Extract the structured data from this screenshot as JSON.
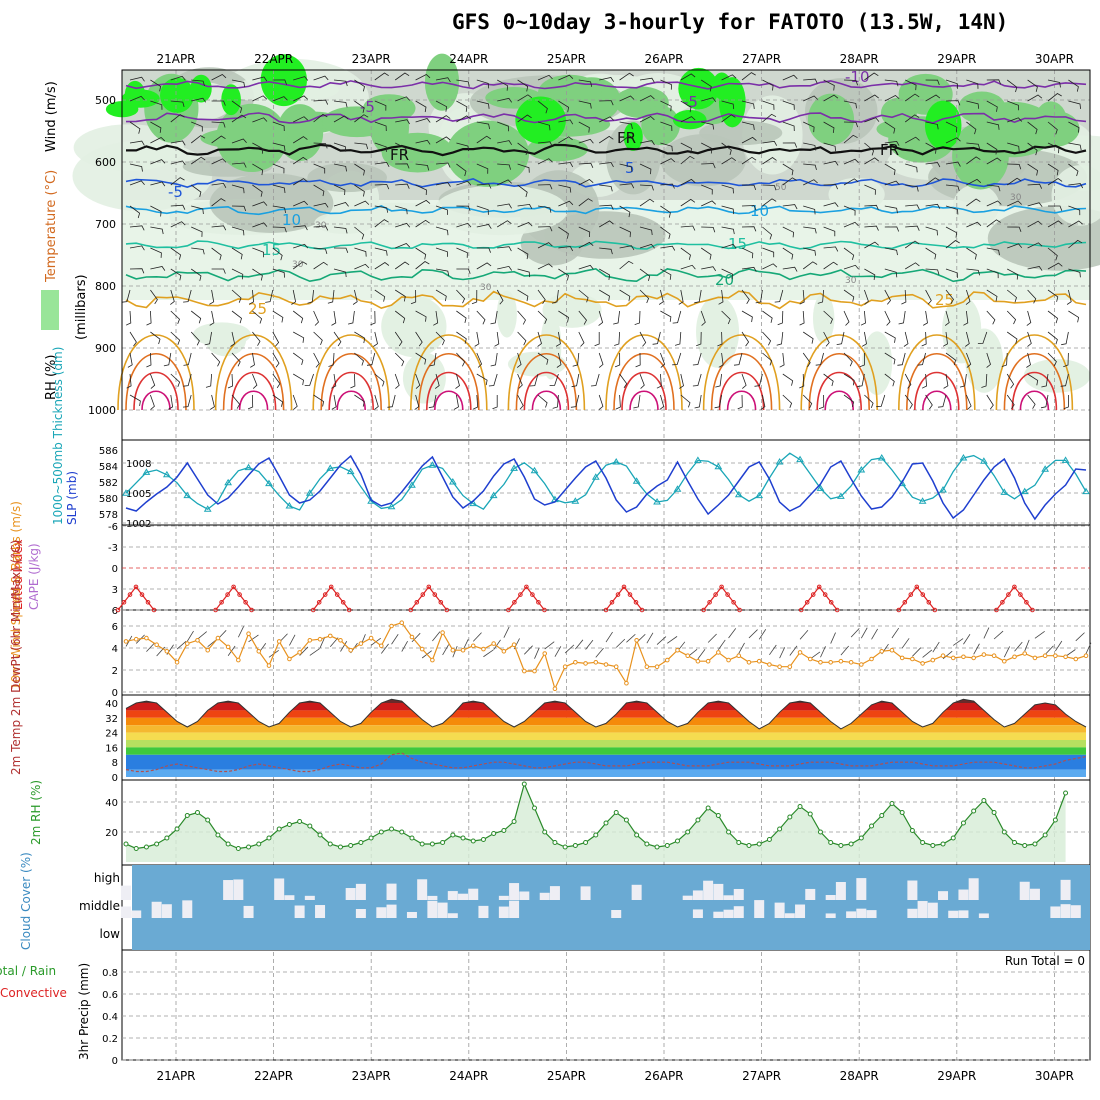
{
  "title": "GFS 0~10day 3-hourly for FATOTO (13.5W, 14N)",
  "chart_data": {
    "type": "meteogram",
    "days": [
      "21APR",
      "22APR",
      "23APR",
      "24APR",
      "25APR",
      "26APR",
      "27APR",
      "28APR",
      "29APR",
      "30APR"
    ],
    "panels": {
      "upper_air": {
        "ylabel": "(millibars)",
        "legend": {
          "wind": "Wind (m/s)",
          "temp": "Temperature (°C)",
          "rh": "RH (%)"
        },
        "yticks": [
          "500",
          "600",
          "700",
          "800",
          "900",
          "1000"
        ],
        "ytick_values": [
          500,
          600,
          700,
          800,
          900,
          1000
        ],
        "temp_labels": [
          "-10",
          "-5",
          "-5",
          "FR",
          "FR",
          "FR",
          "-5",
          "5",
          "10",
          "10",
          "15",
          "15",
          "20",
          "25",
          "25"
        ],
        "rh_labels": [
          "30",
          "30",
          "30",
          "30",
          "50",
          "30"
        ]
      },
      "thickness_slp": {
        "ylabel_left": "1000~500mb Thickness (dm)",
        "ylabel_right": "SLP (mb)",
        "thickness_ticks": [
          "586",
          "584",
          "582",
          "580",
          "578"
        ],
        "slp_ticks": [
          "1008",
          "1005",
          "1002"
        ],
        "thickness_color": "#1aa6b7",
        "slp_color": "#1f3fcf",
        "slp_values": [
          1003.5,
          1003.2,
          1004.1,
          1004.9,
          1005.6,
          1006.6,
          1008.0,
          1006.4,
          1004.8,
          1003.9,
          1004.5,
          1005.6,
          1006.8,
          1007.9,
          1008.5,
          1006.7,
          1004.8,
          1004.0,
          1004.3,
          1005.2,
          1006.5,
          1007.8,
          1008.7,
          1006.9,
          1004.3,
          1003.7,
          1004.0,
          1005.1,
          1006.4,
          1007.7,
          1008.6,
          1006.6,
          1004.6,
          1003.5,
          1004.2,
          1005.2,
          1006.7,
          1007.9,
          1008.4,
          1006.6,
          1004.4,
          1003.8,
          1004.1,
          1005.3,
          1006.5,
          1007.6,
          1008.2,
          1006.5,
          1004.3,
          1003.1,
          1003.6,
          1004.9,
          1005.7,
          1006.3,
          1008.1,
          1006.2,
          1004.4,
          1002.9,
          1003.8,
          1004.8,
          1006.2,
          1007.6,
          1008.1,
          1006.4,
          1004.1,
          1003.2,
          1003.7,
          1004.8,
          1005.9,
          1007.6,
          1008.2,
          1006.4,
          1004.7,
          1003.4,
          1003.6,
          1004.6,
          1006.1,
          1007.9,
          1008.0,
          1006.2,
          1004.0,
          1002.5,
          1003.3,
          1004.8,
          1006.3,
          1007.6,
          1008.4,
          1006.5,
          1004.0,
          1002.4,
          1003.8,
          1004.9,
          1005.8,
          1007.4,
          1007.3
        ],
        "thickness_values": [
          580.6,
          581.9,
          583.2,
          583.5,
          582.9,
          581.9,
          580.3,
          579.3,
          578.6,
          579.6,
          581.9,
          583.4,
          583.8,
          583.3,
          581.8,
          580.3,
          579.0,
          578.5,
          580.6,
          582.4,
          583.7,
          583.9,
          583.3,
          581.4,
          579.6,
          578.7,
          578.9,
          579.8,
          581.6,
          583.6,
          584.1,
          583.7,
          582.0,
          580.3,
          579.3,
          578.6,
          580.3,
          581.7,
          583.7,
          584.4,
          583.4,
          581.8,
          579.8,
          579.4,
          579.6,
          580.4,
          582.6,
          584.1,
          584.5,
          584.0,
          582.1,
          580.5,
          579.5,
          579.7,
          581.1,
          583.1,
          584.7,
          584.6,
          583.9,
          582.3,
          580.4,
          579.6,
          580.3,
          582.5,
          584.5,
          585.6,
          584.8,
          583.0,
          581.2,
          579.9,
          580.2,
          581.5,
          583.5,
          584.8,
          585.0,
          583.5,
          581.8,
          580.1,
          579.6,
          580.0,
          581.0,
          583.3,
          585.0,
          585.3,
          584.6,
          582.8,
          580.7,
          579.9,
          580.8,
          581.6,
          583.6,
          584.7,
          584.7,
          583.0,
          580.8
        ]
      },
      "lifted_index": {
        "ylabel_left": "Lifted Index",
        "ylabel_right": "CAPE (J/kg)",
        "yticks": [
          "-6",
          "-3",
          "0",
          "3",
          "6"
        ],
        "ytick_values": [
          -6,
          -3,
          0,
          3,
          6
        ],
        "line_color": "#dd2222"
      },
      "wind10m": {
        "ylabel": "10m Wind Speed & Barbs (m/s)",
        "yticks": [
          "0",
          "2",
          "4",
          "6"
        ],
        "ytick_values": [
          0,
          2,
          4,
          6
        ],
        "line_color": "#e8921e",
        "values": [
          4.6,
          4.8,
          4.9,
          4.3,
          3.7,
          2.7,
          4.4,
          4.7,
          3.8,
          4.9,
          4.1,
          2.9,
          5.3,
          3.7,
          2.4,
          4.6,
          3.0,
          3.6,
          4.7,
          4.8,
          5.1,
          4.7,
          3.8,
          4.4,
          4.9,
          4.2,
          6.0,
          6.3,
          5.0,
          3.9,
          2.9,
          5.4,
          3.8,
          3.8,
          4.2,
          3.9,
          4.4,
          3.7,
          4.3,
          1.9,
          1.9,
          3.5,
          0.3,
          2.3,
          2.7,
          2.6,
          2.7,
          2.5,
          2.3,
          0.8,
          4.7,
          2.3,
          2.3,
          2.9,
          3.8,
          3.3,
          2.8,
          2.8,
          3.6,
          2.9,
          3.3,
          2.7,
          2.8,
          2.5,
          2.3,
          2.3,
          3.6,
          3.0,
          2.7,
          2.7,
          2.8,
          2.7,
          2.5,
          3.0,
          3.7,
          3.8,
          3.1,
          3.0,
          2.6,
          2.9,
          3.3,
          3.1,
          3.2,
          3.1,
          3.4,
          3.3,
          2.8,
          3.2,
          3.5,
          3.1,
          3.3,
          3.3,
          3.2,
          3.0,
          3.3
        ]
      },
      "temp2m": {
        "ylabel": "2m Temp 2m DewPt (6hr Min/Max) (°C)",
        "yticks": [
          "40",
          "32",
          "24",
          "16",
          "8",
          "0"
        ],
        "ytick_values": [
          40,
          32,
          24,
          16,
          8,
          0
        ],
        "temp_values": [
          37,
          40,
          41,
          40,
          35,
          30,
          27,
          30,
          36,
          40,
          41,
          40,
          35,
          30,
          27,
          29,
          35,
          40,
          41,
          40,
          35,
          30,
          27,
          29,
          35,
          40,
          42,
          41,
          36,
          31,
          27,
          29,
          34,
          40,
          41,
          40,
          35,
          30,
          27,
          30,
          35,
          40,
          41,
          40,
          35,
          30,
          27,
          29,
          34,
          40,
          41,
          40,
          35,
          30,
          27,
          29,
          35,
          40,
          41,
          40,
          35,
          30,
          26,
          29,
          35,
          40,
          41,
          40,
          35,
          30,
          26,
          29,
          34,
          39,
          41,
          40,
          35,
          30,
          27,
          29,
          35,
          40,
          42,
          41,
          36,
          31,
          27,
          29,
          34,
          39,
          40,
          39,
          34,
          30,
          27
        ],
        "dew_values": [
          4,
          3,
          3,
          4,
          6,
          7,
          6,
          5,
          4,
          3,
          3,
          4,
          6,
          7,
          6,
          5,
          4,
          3,
          3,
          4,
          6,
          7,
          6,
          5,
          5,
          7,
          12,
          13,
          10,
          8,
          7,
          6,
          5,
          5,
          6,
          7,
          8,
          8,
          7,
          6,
          5,
          5,
          6,
          7,
          8,
          8,
          7,
          6,
          6,
          6,
          7,
          8,
          8,
          8,
          7,
          6,
          6,
          6,
          7,
          8,
          8,
          8,
          7,
          6,
          6,
          6,
          7,
          8,
          8,
          8,
          7,
          6,
          6,
          6,
          7,
          8,
          8,
          8,
          7,
          6,
          6,
          6,
          7,
          8,
          8,
          8,
          7,
          6,
          5,
          5,
          6,
          7,
          9,
          10,
          11
        ]
      },
      "rh2m": {
        "ylabel": "2m RH (%)",
        "yticks": [
          "40",
          "20"
        ],
        "ytick_values": [
          40,
          20
        ],
        "line_color": "#2a8a2a",
        "values": [
          12,
          9,
          10,
          12,
          16,
          22,
          31,
          33,
          28,
          18,
          12,
          9,
          10,
          12,
          16,
          22,
          25,
          27,
          24,
          18,
          12,
          10,
          11,
          13,
          16,
          20,
          22,
          20,
          16,
          12,
          12,
          13,
          18,
          16,
          14,
          15,
          19,
          21,
          27,
          52,
          36,
          20,
          13,
          10,
          11,
          13,
          18,
          26,
          33,
          28,
          18,
          12,
          10,
          11,
          14,
          20,
          28,
          36,
          31,
          20,
          13,
          11,
          12,
          15,
          22,
          30,
          37,
          32,
          20,
          13,
          11,
          12,
          16,
          24,
          31,
          39,
          33,
          21,
          13,
          11,
          12,
          16,
          26,
          34,
          41,
          33,
          20,
          13,
          11,
          12,
          18,
          28,
          46
        ]
      },
      "cloud": {
        "ylabel": "Cloud Cover (%)",
        "yticks": [
          "high",
          "middle",
          "low"
        ],
        "bg_color": "#6aaad3",
        "cloud_color": "#eeeef4"
      },
      "precip": {
        "ylabel_top": "Total / Rain",
        "ylabel_mid": "Convective",
        "ylabel_bottom": "3hr Precip (mm)",
        "yticks": [
          "0.8",
          "0.6",
          "0.4",
          "0.2",
          "0"
        ],
        "ytick_values": [
          0.8,
          0.6,
          0.4,
          0.2,
          0
        ],
        "run_total": "Run Total = 0",
        "values": []
      }
    }
  }
}
